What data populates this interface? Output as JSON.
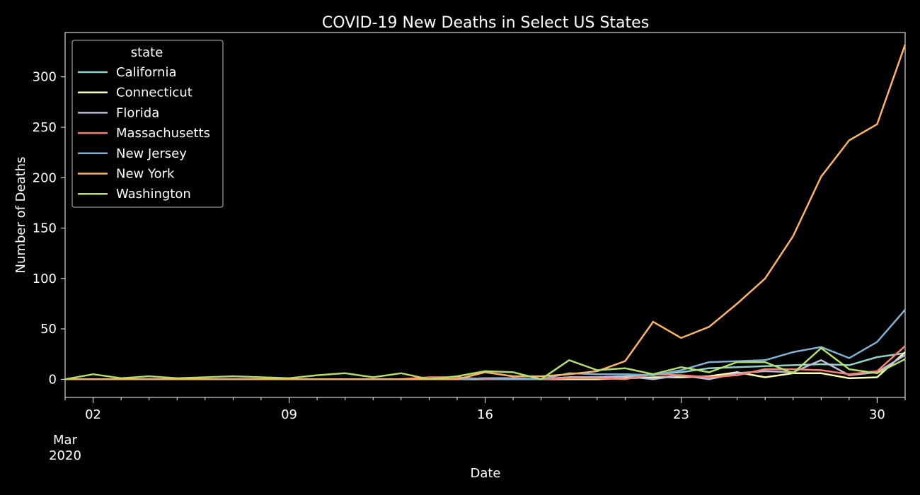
{
  "chart_data": {
    "type": "line",
    "title": "COVID-19 New Deaths in Select US States",
    "xlabel": "Date",
    "ylabel": "Number of Deaths",
    "x_start": "2020-03-01",
    "x": [
      "2020-03-01",
      "2020-03-02",
      "2020-03-03",
      "2020-03-04",
      "2020-03-05",
      "2020-03-06",
      "2020-03-07",
      "2020-03-08",
      "2020-03-09",
      "2020-03-10",
      "2020-03-11",
      "2020-03-12",
      "2020-03-13",
      "2020-03-14",
      "2020-03-15",
      "2020-03-16",
      "2020-03-17",
      "2020-03-18",
      "2020-03-19",
      "2020-03-20",
      "2020-03-21",
      "2020-03-22",
      "2020-03-23",
      "2020-03-24",
      "2020-03-25",
      "2020-03-26",
      "2020-03-27",
      "2020-03-28",
      "2020-03-29",
      "2020-03-30",
      "2020-03-31"
    ],
    "xlim": [
      "2020-03-01",
      "2020-03-31"
    ],
    "ylim": [
      -18,
      344
    ],
    "x_major_ticks": [
      "02",
      "09",
      "16",
      "23",
      "30"
    ],
    "x_month_label": "Mar",
    "x_year_label": "2020",
    "y_ticks": [
      0,
      50,
      100,
      150,
      200,
      250,
      300
    ],
    "legend": {
      "title": "state",
      "placement": "top-left"
    },
    "grid": false,
    "series": [
      {
        "name": "California",
        "color": "#8dd3c7",
        "values": [
          0,
          0,
          0,
          0,
          0,
          0,
          0,
          0,
          0,
          0,
          0,
          0,
          0,
          0,
          0,
          1,
          1,
          0,
          2,
          2,
          3,
          5,
          7,
          11,
          12,
          13,
          14,
          15,
          14,
          22,
          26
        ]
      },
      {
        "name": "Connecticut",
        "color": "#feffb3",
        "values": [
          0,
          0,
          0,
          0,
          0,
          0,
          0,
          0,
          0,
          0,
          0,
          0,
          0,
          0,
          0,
          0,
          0,
          0,
          0,
          0,
          1,
          2,
          2,
          3,
          7,
          2,
          6,
          6,
          1,
          2,
          27
        ]
      },
      {
        "name": "Florida",
        "color": "#bfbbd9",
        "values": [
          0,
          0,
          0,
          0,
          0,
          0,
          0,
          0,
          0,
          0,
          0,
          0,
          0,
          0,
          0,
          1,
          1,
          0,
          2,
          2,
          3,
          0,
          4,
          0,
          6,
          8,
          7,
          19,
          4,
          7,
          24
        ]
      },
      {
        "name": "Massachusetts",
        "color": "#fa8174",
        "values": [
          0,
          0,
          0,
          0,
          0,
          0,
          0,
          0,
          0,
          0,
          0,
          0,
          0,
          2,
          2,
          0,
          0,
          0,
          1,
          1,
          0,
          5,
          4,
          2,
          4,
          10,
          10,
          9,
          5,
          8,
          33
        ]
      },
      {
        "name": "New Jersey",
        "color": "#81b1d2",
        "values": [
          0,
          0,
          0,
          0,
          0,
          0,
          0,
          0,
          0,
          0,
          0,
          0,
          0,
          0,
          0,
          1,
          0,
          0,
          6,
          5,
          5,
          4,
          9,
          17,
          18,
          19,
          27,
          32,
          21,
          37,
          69
        ]
      },
      {
        "name": "New York",
        "color": "#fdb462",
        "values": [
          0,
          0,
          0,
          0,
          0,
          0,
          0,
          0,
          0,
          0,
          0,
          0,
          0,
          0,
          0,
          7,
          3,
          3,
          5,
          8,
          18,
          57,
          41,
          52,
          75,
          100,
          142,
          201,
          237,
          253,
          332
        ]
      },
      {
        "name": "Washington",
        "color": "#b3de69",
        "values": [
          0,
          5,
          1,
          3,
          1,
          2,
          3,
          2,
          1,
          4,
          6,
          2,
          6,
          0,
          3,
          8,
          7,
          0,
          19,
          9,
          11,
          5,
          12,
          7,
          17,
          17,
          6,
          31,
          10,
          6,
          20
        ]
      }
    ]
  }
}
